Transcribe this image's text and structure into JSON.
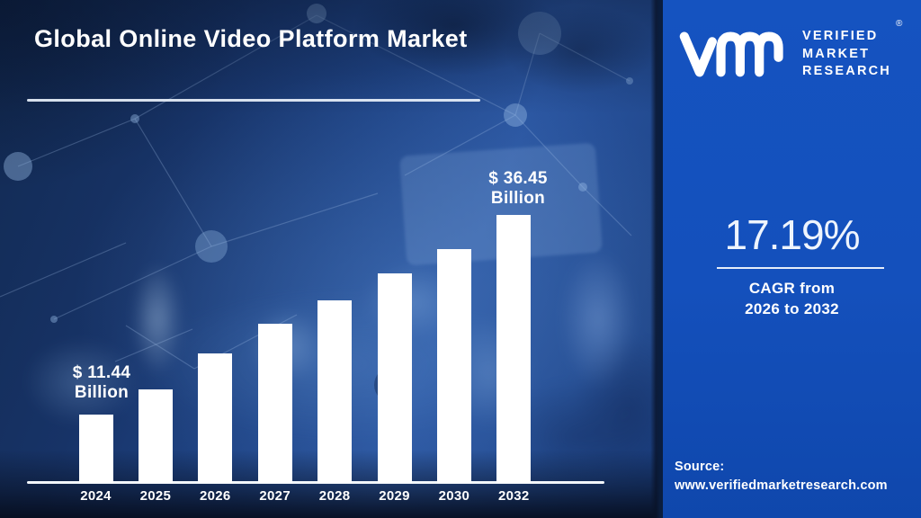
{
  "title": "Global Online Video Platform Market",
  "brand": {
    "logo_icon": "vmr-logo",
    "name_lines": [
      "VERIFIED",
      "MARKET",
      "RESEARCH"
    ],
    "registered_mark": "®"
  },
  "stats": {
    "cagr_value": "17.19%",
    "cagr_caption_line1": "CAGR from",
    "cagr_caption_line2": "2026 to 2032"
  },
  "source": {
    "label": "Source:",
    "url": "www.verifiedmarketresearch.com"
  },
  "annotations": {
    "first_bar": {
      "line1": "$ 11.44",
      "line2": "Billion"
    },
    "last_bar": {
      "line1": "$ 36.45",
      "line2": "Billion"
    }
  },
  "chart_data": {
    "type": "bar",
    "title": "Global Online Video Platform Market",
    "unit": "USD Billion",
    "categories": [
      "2024",
      "2025",
      "2026",
      "2027",
      "2028",
      "2029",
      "2030",
      "2032"
    ],
    "values": [
      11.44,
      14.6,
      19.1,
      22.8,
      25.8,
      29.1,
      32.2,
      36.45
    ],
    "labeled_values": {
      "2024": 11.44,
      "2032": 36.45
    },
    "values_estimated_except": [
      "2024",
      "2032"
    ],
    "data_labels": {
      "2024": "$ 11.44 Billion",
      "2032": "$ 36.45 Billion"
    },
    "xlabel": "",
    "ylabel": "",
    "ylim": [
      0,
      40
    ],
    "grid": false,
    "legend": false,
    "bar_color": "#ffffff",
    "axis_color": "#f2f6fa"
  },
  "colors": {
    "left_bg_dark": "#122a52",
    "left_bg_mid": "#2a55a0",
    "right_panel": "#1450bc",
    "seam": "#0a1d3e",
    "text": "#ffffff"
  }
}
